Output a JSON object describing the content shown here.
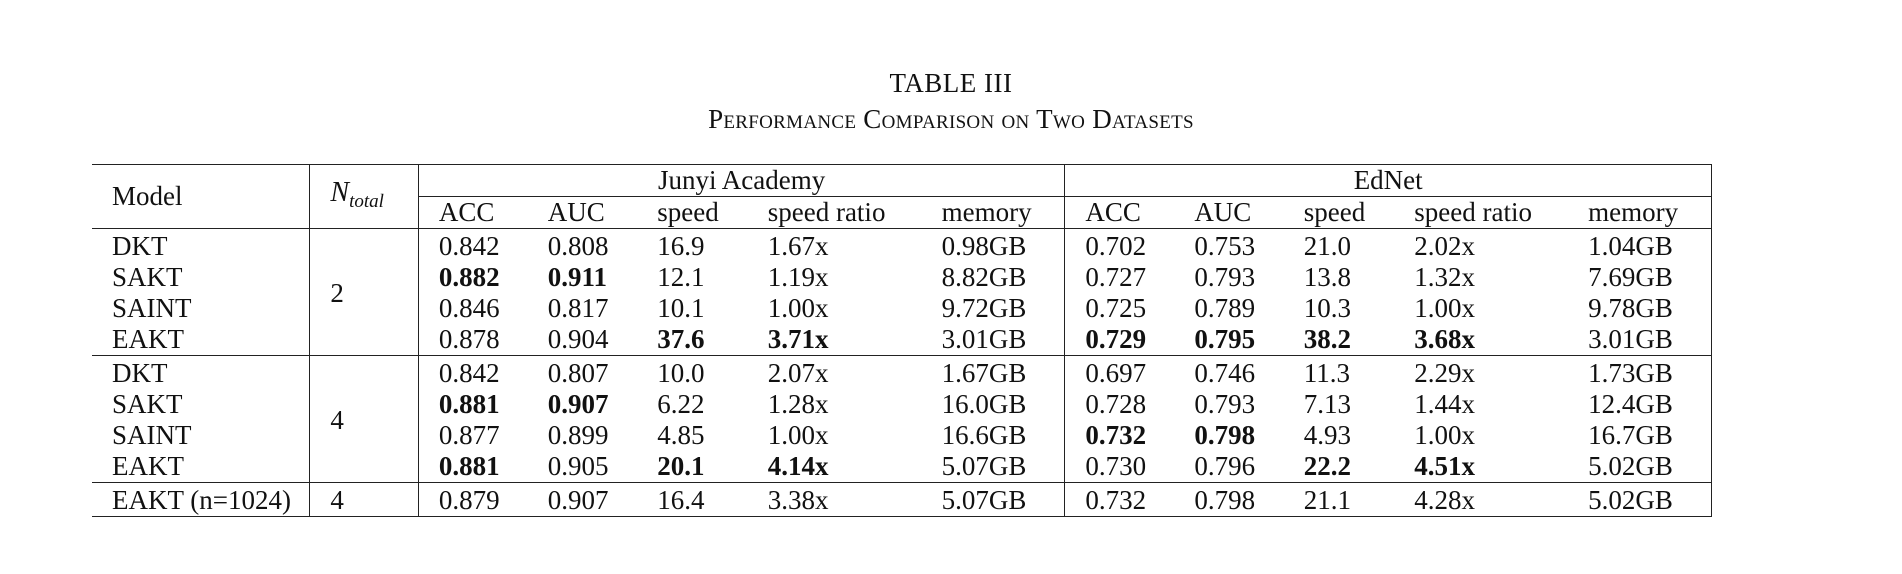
{
  "caption": {
    "number": "TABLE III",
    "title": "Performance Comparison on Two Datasets"
  },
  "header": {
    "model": "Model",
    "n_total_base": "N",
    "n_total_sub": "total",
    "group1": "Junyi Academy",
    "group2": "EdNet",
    "cols1": [
      "ACC",
      "AUC",
      "speed",
      "speed ratio",
      "memory"
    ],
    "cols2": [
      "ACC",
      "AUC",
      "speed",
      "speed ratio",
      "memory"
    ]
  },
  "blocks": [
    {
      "n": "2",
      "rows": [
        {
          "model": "DKT",
          "cells": [
            {
              "v": "0.842"
            },
            {
              "v": "0.808"
            },
            {
              "v": "16.9"
            },
            {
              "v": "1.67x"
            },
            {
              "v": "0.98GB"
            },
            {
              "v": "0.702"
            },
            {
              "v": "0.753"
            },
            {
              "v": "21.0"
            },
            {
              "v": "2.02x"
            },
            {
              "v": "1.04GB"
            }
          ]
        },
        {
          "model": "SAKT",
          "cells": [
            {
              "v": "0.882",
              "b": true
            },
            {
              "v": "0.911",
              "b": true
            },
            {
              "v": "12.1"
            },
            {
              "v": "1.19x"
            },
            {
              "v": "8.82GB"
            },
            {
              "v": "0.727"
            },
            {
              "v": "0.793"
            },
            {
              "v": "13.8"
            },
            {
              "v": "1.32x"
            },
            {
              "v": "7.69GB"
            }
          ]
        },
        {
          "model": "SAINT",
          "cells": [
            {
              "v": "0.846"
            },
            {
              "v": "0.817"
            },
            {
              "v": "10.1"
            },
            {
              "v": "1.00x"
            },
            {
              "v": "9.72GB"
            },
            {
              "v": "0.725"
            },
            {
              "v": "0.789"
            },
            {
              "v": "10.3"
            },
            {
              "v": "1.00x"
            },
            {
              "v": "9.78GB"
            }
          ]
        },
        {
          "model": "EAKT",
          "cells": [
            {
              "v": "0.878"
            },
            {
              "v": "0.904"
            },
            {
              "v": "37.6",
              "b": true
            },
            {
              "v": "3.71x",
              "b": true
            },
            {
              "v": "3.01GB"
            },
            {
              "v": "0.729",
              "b": true
            },
            {
              "v": "0.795",
              "b": true
            },
            {
              "v": "38.2",
              "b": true
            },
            {
              "v": "3.68x",
              "b": true
            },
            {
              "v": "3.01GB"
            }
          ]
        }
      ]
    },
    {
      "n": "4",
      "rows": [
        {
          "model": "DKT",
          "cells": [
            {
              "v": "0.842"
            },
            {
              "v": "0.807"
            },
            {
              "v": "10.0"
            },
            {
              "v": "2.07x"
            },
            {
              "v": "1.67GB"
            },
            {
              "v": "0.697"
            },
            {
              "v": "0.746"
            },
            {
              "v": "11.3"
            },
            {
              "v": "2.29x"
            },
            {
              "v": "1.73GB"
            }
          ]
        },
        {
          "model": "SAKT",
          "cells": [
            {
              "v": "0.881",
              "b": true
            },
            {
              "v": "0.907",
              "b": true
            },
            {
              "v": "6.22"
            },
            {
              "v": "1.28x"
            },
            {
              "v": "16.0GB"
            },
            {
              "v": "0.728"
            },
            {
              "v": "0.793"
            },
            {
              "v": "7.13"
            },
            {
              "v": "1.44x"
            },
            {
              "v": "12.4GB"
            }
          ]
        },
        {
          "model": "SAINT",
          "cells": [
            {
              "v": "0.877"
            },
            {
              "v": "0.899"
            },
            {
              "v": "4.85"
            },
            {
              "v": "1.00x"
            },
            {
              "v": "16.6GB"
            },
            {
              "v": "0.732",
              "b": true
            },
            {
              "v": "0.798",
              "b": true
            },
            {
              "v": "4.93"
            },
            {
              "v": "1.00x"
            },
            {
              "v": "16.7GB"
            }
          ]
        },
        {
          "model": "EAKT",
          "cells": [
            {
              "v": "0.881",
              "b": true
            },
            {
              "v": "0.905"
            },
            {
              "v": "20.1",
              "b": true
            },
            {
              "v": "4.14x",
              "b": true
            },
            {
              "v": "5.07GB"
            },
            {
              "v": "0.730"
            },
            {
              "v": "0.796"
            },
            {
              "v": "22.2",
              "b": true
            },
            {
              "v": "4.51x",
              "b": true
            },
            {
              "v": "5.02GB"
            }
          ]
        }
      ]
    },
    {
      "n": "4",
      "rows": [
        {
          "model": "EAKT (n=1024)",
          "cells": [
            {
              "v": "0.879"
            },
            {
              "v": "0.907"
            },
            {
              "v": "16.4"
            },
            {
              "v": "3.38x"
            },
            {
              "v": "5.07GB"
            },
            {
              "v": "0.732"
            },
            {
              "v": "0.798"
            },
            {
              "v": "21.1"
            },
            {
              "v": "4.28x"
            },
            {
              "v": "5.02GB"
            }
          ]
        }
      ]
    }
  ]
}
